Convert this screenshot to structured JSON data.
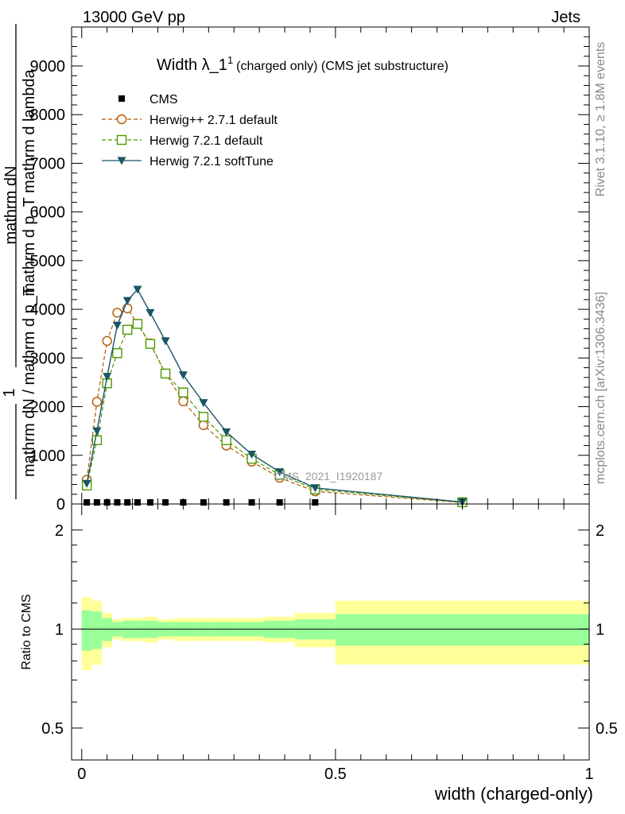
{
  "header": {
    "left": "13000 GeV pp",
    "right": "Jets"
  },
  "side_labels": {
    "rivet": "Rivet 3.1.10, ≥ 1.8M events",
    "mcplots": "mcplots.cern.ch [arXiv:1306.3436]"
  },
  "watermark": "CMS_2021_I1920187",
  "chart_data": {
    "type": "line",
    "title": {
      "main": "Width λ_1",
      "sup": "1",
      "sub": "(charged only) (CMS jet substructure)"
    },
    "ylabel": {
      "numerator": "mathrm dN",
      "denominator": "mathrm d p_T mathrm d lambda",
      "fraction_one": "1",
      "prefix": "mathrm dN / mathrm d p_T"
    },
    "xlabel": "width (charged-only)",
    "ratio_ylabel": "Ratio to CMS",
    "ylim": [
      0,
      9800
    ],
    "xlim": [
      -0.02,
      1.0
    ],
    "ratio_ylim": [
      0.4,
      2.4
    ],
    "y_ticks": [
      "0",
      "1000",
      "2000",
      "3000",
      "4000",
      "5000",
      "6000",
      "7000",
      "8000",
      "9000"
    ],
    "x_ticks": [
      "0",
      "0.5",
      "1"
    ],
    "ratio_ticks": [
      "0.5",
      "1",
      "2"
    ],
    "legend_position": "top-left",
    "series": [
      {
        "name": "CMS",
        "color": "#000000",
        "marker": "filled-square",
        "style": "none",
        "x": [
          0.01,
          0.03,
          0.05,
          0.07,
          0.09,
          0.11,
          0.135,
          0.165,
          0.2,
          0.24,
          0.285,
          0.335,
          0.39,
          0.46,
          0.75
        ],
        "y": [
          0,
          0,
          0,
          0,
          0,
          0,
          0,
          0,
          0,
          0,
          0,
          0,
          0,
          0,
          0
        ]
      },
      {
        "name": "Herwig++ 2.7.1 default",
        "color": "#b35900",
        "marker": "open-circle",
        "style": "dashed",
        "x": [
          0.01,
          0.03,
          0.05,
          0.07,
          0.09,
          0.11,
          0.135,
          0.165,
          0.2,
          0.24,
          0.285,
          0.335,
          0.39,
          0.46,
          0.75
        ],
        "y": [
          500,
          2100,
          3350,
          3930,
          4020,
          3700,
          3300,
          2680,
          2110,
          1620,
          1200,
          870,
          540,
          260,
          30
        ]
      },
      {
        "name": "Herwig 7.2.1 default",
        "color": "#4d9900",
        "marker": "open-square",
        "style": "dashed",
        "x": [
          0.01,
          0.03,
          0.05,
          0.07,
          0.09,
          0.11,
          0.135,
          0.165,
          0.2,
          0.24,
          0.285,
          0.335,
          0.39,
          0.46,
          0.75
        ],
        "y": [
          380,
          1310,
          2480,
          3100,
          3580,
          3700,
          3290,
          2680,
          2290,
          1790,
          1310,
          930,
          600,
          300,
          35
        ]
      },
      {
        "name": "Herwig 7.2.1 softTune",
        "color": "#1a5566",
        "marker": "filled-triangle-down",
        "style": "solid",
        "x": [
          0.01,
          0.03,
          0.05,
          0.07,
          0.09,
          0.11,
          0.135,
          0.165,
          0.2,
          0.24,
          0.285,
          0.335,
          0.39,
          0.46,
          0.75
        ],
        "y": [
          420,
          1500,
          2620,
          3670,
          4180,
          4410,
          3930,
          3350,
          2650,
          2080,
          1480,
          1020,
          660,
          330,
          40
        ]
      }
    ],
    "ratio_bands": {
      "edges": [
        0.0,
        0.02,
        0.04,
        0.06,
        0.08,
        0.1,
        0.12,
        0.15,
        0.18,
        0.22,
        0.26,
        0.31,
        0.36,
        0.42,
        0.5,
        1.0
      ],
      "inner": [
        0.14,
        0.13,
        0.08,
        0.05,
        0.06,
        0.06,
        0.06,
        0.05,
        0.05,
        0.05,
        0.05,
        0.05,
        0.06,
        0.07,
        0.11
      ],
      "outer": [
        0.25,
        0.22,
        0.12,
        0.07,
        0.08,
        0.08,
        0.09,
        0.07,
        0.08,
        0.08,
        0.08,
        0.08,
        0.09,
        0.12,
        0.22
      ],
      "inner_color": "#99ff99",
      "outer_color": "#ffff99"
    }
  }
}
